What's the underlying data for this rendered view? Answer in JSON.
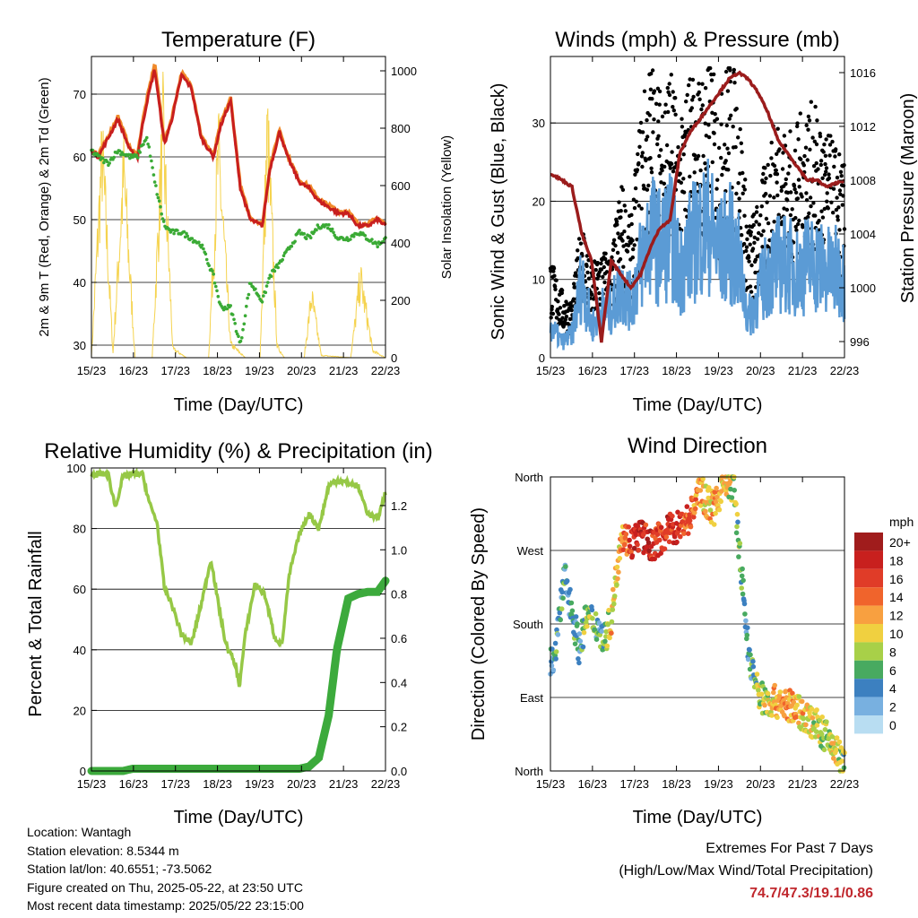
{
  "figure": {
    "time_ticks": [
      "15/23",
      "16/23",
      "17/23",
      "18/23",
      "19/23",
      "20/23",
      "21/23",
      "22/23"
    ],
    "time_label": "Time (Day/UTC)"
  },
  "panels": {
    "temperature": {
      "title": "Temperature (F)",
      "ylabel_left": "2m & 9m T (Red, Orange) & 2m Td (Green)",
      "ylabel_right": "Solar Insolation (Yellow)"
    },
    "winds": {
      "title": "Winds (mph) & Pressure (mb)",
      "ylabel_left": "Sonic Wind & Gust (Blue, Black)",
      "ylabel_right": "Station Pressure (Maroon)"
    },
    "humidity": {
      "title": "Relative Humidity (%) & Precipitation (in)",
      "ylabel_left": "Percent & Total Rainfall"
    },
    "wind_direction": {
      "title": "Wind Direction",
      "ylabel_left": "Direction (Colored By Speed)",
      "legend_title": "mph"
    }
  },
  "info": {
    "location": "Location: Wantagh",
    "elevation": "Station elevation: 8.5344 m",
    "latlon": "Station lat/lon: 40.6551; -73.5062",
    "created": "Figure created on Thu, 2025-05-22, at 23:50 UTC",
    "recent": "Most recent data timestamp: 2025/05/22 23:15:00"
  },
  "extremes": {
    "line1": "Extremes For Past 7 Days",
    "line2": "(High/Low/Max Wind/Total Precipitation)",
    "values": "74.7/47.3/19.1/0.86"
  },
  "colors": {
    "temp_red": "#c81e1e",
    "temp_orange": "#f08a2a",
    "dewpoint": "#3aaa35",
    "solar": "#f5d34f",
    "gust": "#000000",
    "wind": "#5b9bd5",
    "pressure": "#9b1c1c",
    "rh": "#96c846",
    "precip": "#3caa3c"
  },
  "chart_data": [
    {
      "type": "line",
      "title": "Temperature (F)",
      "xlabel": "Time (Day/UTC)",
      "ylabel": "2m & 9m T (Red, Orange) & 2m Td (Green)",
      "y2label": "Solar Insolation (Yellow)",
      "x": [
        15.96,
        16.1,
        16.3,
        16.5,
        16.75,
        16.9,
        17.0,
        17.1,
        17.25,
        17.45,
        17.6,
        17.8,
        18.0,
        18.2,
        18.45,
        18.6,
        18.8,
        19.0,
        19.2,
        19.45,
        19.6,
        19.8,
        19.96,
        20.2,
        20.4,
        20.6,
        20.8,
        21.0,
        21.2,
        21.4,
        21.6,
        21.8,
        21.96
      ],
      "ylim": [
        28,
        76
      ],
      "y2lim": [
        0,
        1050
      ],
      "grid": true,
      "series": [
        {
          "name": "2m T",
          "color": "#c81e1e",
          "values": [
            61,
            60,
            63,
            66,
            61,
            60,
            65,
            69,
            74,
            62,
            66,
            73,
            71,
            63,
            60,
            65,
            69,
            55,
            50,
            49,
            58,
            64,
            60,
            56,
            55,
            53,
            52,
            51,
            51,
            49,
            49,
            50,
            49
          ]
        },
        {
          "name": "9m T",
          "color": "#f08a2a",
          "values": [
            61.3,
            60.3,
            63.3,
            66.5,
            61.3,
            60.3,
            65.5,
            69.5,
            75,
            62.3,
            66.3,
            73.4,
            71.4,
            63.3,
            60.3,
            65.4,
            69.4,
            55.3,
            50.3,
            49.3,
            58.3,
            64.4,
            60.3,
            56.3,
            55.3,
            53.3,
            52.3,
            51.3,
            51.3,
            49.3,
            49.3,
            50.3,
            49.3
          ]
        },
        {
          "name": "2m Td",
          "color": "#3aaa35",
          "values": [
            61,
            60,
            59,
            61,
            60,
            60,
            62,
            63,
            56,
            49,
            48,
            48,
            47,
            46,
            41,
            36,
            36,
            30,
            40,
            37,
            41,
            43,
            45,
            48,
            47,
            49,
            49,
            47,
            47,
            48,
            47,
            46,
            47
          ]
        },
        {
          "name": "Solar Insolation",
          "color": "#f5d34f",
          "axis": "right",
          "x": [
            15.96,
            16.18,
            16.4,
            16.62,
            16.85,
            17.2,
            17.42,
            17.62,
            17.9,
            18.35,
            18.55,
            18.8,
            19.1,
            19.4,
            19.55,
            19.75,
            19.9,
            20.3,
            20.45,
            20.65,
            21.25,
            21.45,
            21.7,
            21.96
          ],
          "values": [
            0,
            900,
            20,
            820,
            0,
            0,
            1000,
            40,
            0,
            0,
            900,
            60,
            0,
            0,
            1000,
            50,
            0,
            0,
            270,
            10,
            0,
            350,
            30,
            0
          ]
        }
      ]
    },
    {
      "type": "line",
      "title": "Winds (mph) & Pressure (mb)",
      "xlabel": "Time (Day/UTC)",
      "ylabel": "Sonic Wind & Gust (Blue, Black)",
      "y2label": "Station Pressure (Maroon)",
      "x": [
        15.96,
        16.2,
        16.4,
        16.6,
        16.8,
        17.0,
        17.2,
        17.4,
        17.6,
        17.8,
        18.0,
        18.2,
        18.4,
        18.6,
        18.8,
        19.0,
        19.2,
        19.4,
        19.6,
        19.8,
        20.0,
        20.2,
        20.4,
        20.6,
        20.8,
        21.0,
        21.2,
        21.4,
        21.6,
        21.8,
        21.96
      ],
      "ylim": [
        0,
        38.5
      ],
      "y2lim": [
        994.8,
        1017.2
      ],
      "grid": true,
      "series": [
        {
          "name": "Gust",
          "color": "#000000",
          "values": [
            9,
            6,
            5,
            13,
            8,
            10,
            9,
            16,
            12,
            22,
            27,
            24,
            27,
            20,
            26,
            25,
            28,
            22,
            28,
            24,
            12,
            14,
            19,
            22,
            20,
            21,
            23,
            22,
            20,
            19,
            17
          ]
        },
        {
          "name": "Sonic Wind",
          "color": "#5b9bd5",
          "values": [
            4,
            2,
            3,
            10,
            4,
            6,
            6,
            9,
            7,
            12,
            16,
            14,
            16,
            11,
            14,
            16,
            17,
            13,
            15,
            12,
            5,
            8,
            11,
            12,
            12,
            11,
            12,
            12,
            11,
            11,
            10
          ]
        },
        {
          "name": "Station Pressure",
          "color": "#9b1c1c",
          "axis": "right",
          "values": [
            1008.5,
            1008,
            1007.5,
            1004,
            1002,
            996,
            1002,
            1001,
            1000,
            1001,
            1003,
            1004.5,
            1005,
            1010,
            1011.5,
            1012.5,
            1013.5,
            1014.5,
            1015.5,
            1016,
            1015.5,
            1014.5,
            1013,
            1011,
            1010,
            1009,
            1008,
            1008,
            1007.5,
            1007.8,
            1008
          ]
        }
      ]
    },
    {
      "type": "line",
      "title": "Relative Humidity (%) & Precipitation (in)",
      "xlabel": "Time (Day/UTC)",
      "ylabel": "Percent & Total Rainfall",
      "x": [
        15.96,
        16.1,
        16.3,
        16.45,
        16.6,
        16.8,
        17.0,
        17.15,
        17.3,
        17.45,
        17.6,
        17.8,
        18.0,
        18.2,
        18.4,
        18.55,
        18.7,
        18.9,
        18.98,
        19.1,
        19.3,
        19.5,
        19.7,
        19.85,
        20.0,
        20.2,
        20.4,
        20.6,
        20.8,
        20.97,
        21.2,
        21.4,
        21.6,
        21.8,
        21.96
      ],
      "ylim": [
        0,
        100
      ],
      "y2lim": [
        0,
        1.37
      ],
      "grid": true,
      "series": [
        {
          "name": "Relative Humidity",
          "color": "#96c846",
          "values": [
            97,
            98,
            98,
            87,
            97,
            98,
            98,
            88,
            82,
            60,
            55,
            45,
            42,
            55,
            70,
            55,
            42,
            35,
            28,
            45,
            62,
            58,
            44,
            42,
            65,
            78,
            85,
            80,
            94,
            96,
            95,
            94,
            85,
            83,
            92
          ]
        },
        {
          "name": "Total Precipitation",
          "color": "#3caa3c",
          "axis": "right",
          "values": [
            0,
            0,
            0,
            0,
            0,
            0.01,
            0.01,
            0.01,
            0.01,
            0.01,
            0.01,
            0.01,
            0.01,
            0.01,
            0.01,
            0.01,
            0.01,
            0.01,
            0.01,
            0.01,
            0.01,
            0.01,
            0.01,
            0.01,
            0.01,
            0.01,
            0.02,
            0.06,
            0.25,
            0.55,
            0.78,
            0.8,
            0.81,
            0.81,
            0.86
          ]
        }
      ]
    },
    {
      "type": "scatter",
      "title": "Wind Direction",
      "xlabel": "Time (Day/UTC)",
      "ylabel": "Direction (Colored By Speed)",
      "y_ticks": [
        "North",
        "West",
        "South",
        "East",
        "North"
      ],
      "y_tick_degrees": [
        360,
        270,
        180,
        90,
        0
      ],
      "ylim": [
        0,
        360
      ],
      "grid": true,
      "legend": {
        "title": "mph",
        "position": "right",
        "bins": [
          "20+",
          "18",
          "16",
          "14",
          "12",
          "10",
          "8",
          "6",
          "4",
          "2",
          "0"
        ],
        "colors": [
          "#a01c1c",
          "#c8201e",
          "#e03c28",
          "#f0642c",
          "#f8a040",
          "#f0d040",
          "#a8d048",
          "#48aa60",
          "#3c80c0",
          "#78b0e0",
          "#b8ddf2"
        ]
      },
      "x": [
        15.98,
        16.1,
        16.25,
        16.4,
        16.55,
        16.7,
        16.9,
        17.05,
        17.2,
        17.4,
        17.6,
        17.8,
        18.0,
        18.2,
        18.4,
        18.6,
        18.8,
        19.0,
        19.15,
        19.3,
        19.5,
        19.7,
        20.0,
        20.2,
        20.4,
        20.6,
        20.8,
        21.0,
        21.2,
        21.4,
        21.6,
        21.8,
        21.96
      ],
      "series": [
        {
          "name": "Direction",
          "values": [
            130,
            165,
            240,
            195,
            150,
            190,
            180,
            160,
            185,
            290,
            280,
            290,
            275,
            285,
            295,
            300,
            310,
            345,
            330,
            320,
            355,
            350,
            145,
            95,
            85,
            85,
            80,
            75,
            65,
            55,
            40,
            25,
            5
          ]
        },
        {
          "name": "Speed (mph)",
          "values": [
            4,
            5,
            4,
            6,
            3,
            8,
            5,
            6,
            10,
            12,
            16,
            18,
            17,
            15,
            18,
            16,
            14,
            12,
            10,
            12,
            10,
            9,
            4,
            8,
            10,
            12,
            12,
            11,
            10,
            9,
            8,
            10,
            7
          ]
        }
      ]
    }
  ]
}
